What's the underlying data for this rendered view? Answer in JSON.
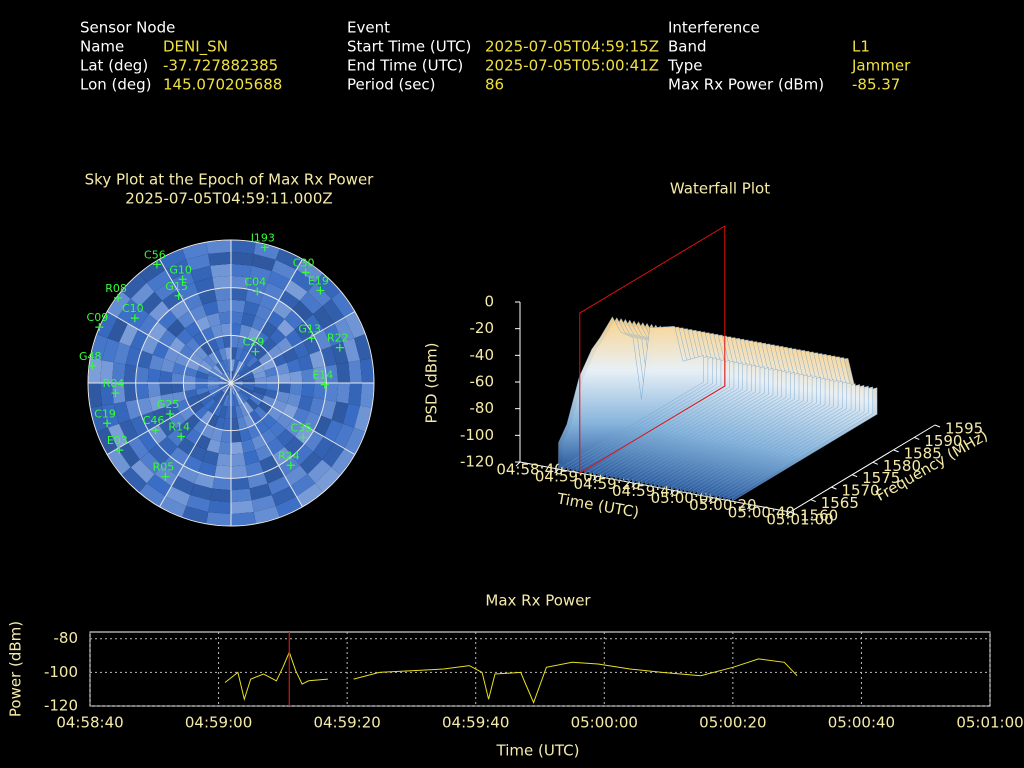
{
  "header": {
    "sections": [
      {
        "title": "Sensor Node",
        "fields": [
          {
            "label": "Name",
            "value": "DENI_SN"
          },
          {
            "label": "Lat (deg)",
            "value": -37.727882385
          },
          {
            "label": "Lon (deg)",
            "value": 145.070205688
          }
        ]
      },
      {
        "title": "Event",
        "fields": [
          {
            "label": "Start Time (UTC)",
            "value": "2025-07-05T04:59:15Z"
          },
          {
            "label": "End Time (UTC)",
            "value": "2025-07-05T05:00:41Z"
          },
          {
            "label": "Period (sec)",
            "value": 86
          }
        ]
      },
      {
        "title": "Interference",
        "fields": [
          {
            "label": "Band",
            "value": "L1"
          },
          {
            "label": "Type",
            "value": "Jammer"
          },
          {
            "label": "Max Rx Power (dBm)",
            "value": -85.37
          }
        ]
      }
    ]
  },
  "chart_data": [
    {
      "type": "polar",
      "title": "Sky Plot at the Epoch of Max Rx Power",
      "subtitle": "2025-07-05T04:59:11.000Z",
      "color": "#33ff33",
      "grid": true,
      "satellites": [
        {
          "name": "C56",
          "az": 328,
          "el": 2
        },
        {
          "name": "I193",
          "az": 14,
          "el": 2
        },
        {
          "name": "G10",
          "az": 335,
          "el": 18
        },
        {
          "name": "G15",
          "az": 329,
          "el": 26
        },
        {
          "name": "R08",
          "az": 307,
          "el": 1
        },
        {
          "name": "C09",
          "az": 293,
          "el": 0
        },
        {
          "name": "C10",
          "az": 304,
          "el": 17
        },
        {
          "name": "G48",
          "az": 277,
          "el": 2
        },
        {
          "name": "R04",
          "az": 265,
          "el": 17
        },
        {
          "name": "C19",
          "az": 252,
          "el": 8
        },
        {
          "name": "E03",
          "az": 239,
          "el": 8
        },
        {
          "name": "R05",
          "az": 215,
          "el": 18
        },
        {
          "name": "G25",
          "az": 243,
          "el": 47
        },
        {
          "name": "R14",
          "az": 223,
          "el": 44
        },
        {
          "name": "C46",
          "az": 238,
          "el": 34
        },
        {
          "name": "R24",
          "az": 144,
          "el": 26
        },
        {
          "name": "C35",
          "az": 127,
          "el": 33
        },
        {
          "name": "E14",
          "az": 91,
          "el": 31
        },
        {
          "name": "R22",
          "az": 72,
          "el": 18
        },
        {
          "name": "G13",
          "az": 61,
          "el": 32
        },
        {
          "name": "E19",
          "az": 44,
          "el": 9
        },
        {
          "name": "C30",
          "az": 34,
          "el": 6
        },
        {
          "name": "C04",
          "az": 16,
          "el": 30
        },
        {
          "name": "C29",
          "az": 38,
          "el": 65
        }
      ]
    },
    {
      "type": "surface3d",
      "title": "Waterfall Plot",
      "zlabel": "PSD (dBm)",
      "xlabel": "Time (UTC)",
      "ylabel": "Frequency (MHz)",
      "xlim": [
        "04:58:40",
        "05:01:00"
      ],
      "xticks": [
        "04:58:40",
        "04:59:00",
        "04:59:20",
        "04:59:40",
        "05:00:00",
        "05:00:20",
        "05:00:40",
        "05:01:00"
      ],
      "ylim": [
        1560,
        1595
      ],
      "yticks": [
        1560,
        1565,
        1570,
        1575,
        1580,
        1585,
        1590,
        1595
      ],
      "zlim": [
        -120,
        0
      ],
      "zticks": [
        0,
        -20,
        -40,
        -60,
        -80,
        -100,
        -120
      ],
      "time_span": [
        "04:59:00",
        "05:00:30"
      ],
      "marker": "04:59:11",
      "marker_color": "#dd1111",
      "spectrum": {
        "frequency": [
          1560,
          1562,
          1565,
          1568,
          1570,
          1573,
          1575,
          1578,
          1580,
          1582,
          1585,
          1588,
          1590,
          1595
        ],
        "psd": [
          -100,
          -90,
          -60,
          -45,
          -40,
          -30,
          -45,
          -55,
          -105,
          -55,
          -60,
          -65,
          -95,
          -100
        ]
      }
    },
    {
      "type": "line",
      "title": "Max Rx Power",
      "xlabel": "Time (UTC)",
      "ylabel": "Power (dBm)",
      "color": "#e8e020",
      "grid": true,
      "xlim": [
        "04:58:40",
        "05:01:00"
      ],
      "xticks": [
        "04:58:40",
        "04:59:00",
        "04:59:20",
        "04:59:40",
        "05:00:00",
        "05:00:20",
        "05:00:40",
        "05:01:00"
      ],
      "ylim": [
        -120,
        -76
      ],
      "yticks": [
        -80,
        -100,
        -120
      ],
      "marker": "04:59:11",
      "marker_color": "#dd1111",
      "x": [
        "04:59:01",
        "04:59:03",
        "04:59:04",
        "04:59:05",
        "04:59:07",
        "04:59:09",
        "04:59:10",
        "04:59:11",
        "04:59:12",
        "04:59:13",
        "04:59:14",
        "04:59:17",
        "04:59:19",
        "04:59:21",
        "04:59:25",
        "04:59:30",
        "04:59:35",
        "04:59:39",
        "04:59:41",
        "04:59:42",
        "04:59:43",
        "04:59:47",
        "04:59:48",
        "04:59:49",
        "04:59:51",
        "04:59:55",
        "04:59:59",
        "05:00:04",
        "05:00:09",
        "05:00:15",
        "05:00:20",
        "05:00:24",
        "05:00:28",
        "05:00:30"
      ],
      "values": [
        -106,
        -100,
        -116,
        -104,
        -101,
        -105,
        -97,
        -88,
        -99,
        -107,
        -105,
        -104,
        null,
        -104,
        -100,
        -99,
        -98,
        -96,
        -100,
        -116,
        -101,
        -100,
        -109,
        -118,
        -97,
        -94,
        -95,
        -98,
        -100,
        -102,
        -97,
        -92,
        -94,
        -102
      ]
    }
  ]
}
